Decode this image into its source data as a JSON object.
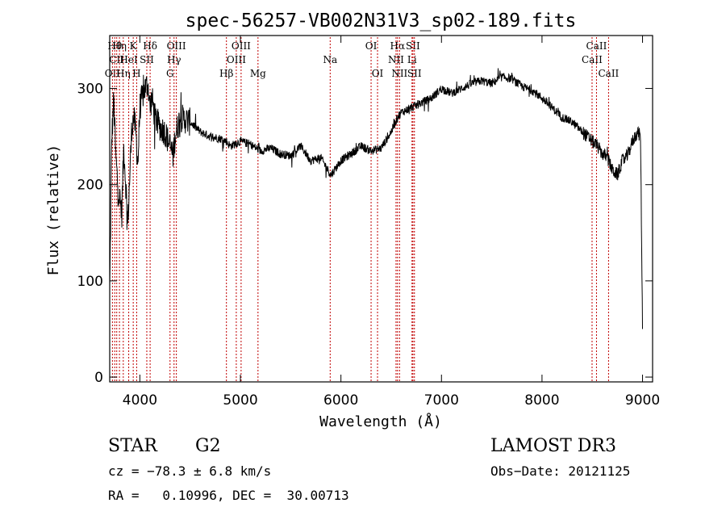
{
  "chart_data": {
    "type": "line",
    "title": "spec-56257-VB002N31V3_sp02-189.fits",
    "xlabel": "Wavelength (Å)",
    "ylabel": "Flux (relative)",
    "xlim": [
      3700,
      9100
    ],
    "ylim": [
      -5,
      355
    ],
    "xticks": [
      4000,
      5000,
      6000,
      7000,
      8000,
      9000
    ],
    "yticks": [
      0,
      100,
      200,
      300
    ],
    "series": [
      {
        "name": "flux",
        "x": [
          3700,
          3720,
          3740,
          3760,
          3780,
          3800,
          3820,
          3840,
          3860,
          3880,
          3900,
          3920,
          3940,
          3960,
          3980,
          4000,
          4020,
          4050,
          4080,
          4100,
          4120,
          4150,
          4200,
          4250,
          4300,
          4330,
          4350,
          4400,
          4500,
          4600,
          4700,
          4800,
          4860,
          4900,
          5000,
          5100,
          5200,
          5300,
          5400,
          5500,
          5600,
          5700,
          5800,
          5900,
          6000,
          6100,
          6200,
          6300,
          6400,
          6500,
          6563,
          6600,
          6700,
          6800,
          6900,
          7000,
          7100,
          7200,
          7300,
          7400,
          7500,
          7600,
          7700,
          7800,
          7900,
          8000,
          8100,
          8200,
          8300,
          8400,
          8500,
          8550,
          8600,
          8650,
          8700,
          8750,
          8800,
          8850,
          8900,
          8950,
          8980,
          9000
        ],
        "y": [
          90,
          245,
          290,
          230,
          200,
          185,
          170,
          240,
          200,
          160,
          210,
          260,
          270,
          255,
          220,
          280,
          290,
          300,
          305,
          280,
          290,
          270,
          260,
          255,
          240,
          230,
          250,
          270,
          265,
          255,
          250,
          248,
          245,
          240,
          245,
          242,
          235,
          238,
          232,
          230,
          240,
          225,
          228,
          210,
          225,
          232,
          240,
          235,
          238,
          255,
          270,
          275,
          280,
          285,
          290,
          300,
          295,
          300,
          305,
          308,
          305,
          312,
          310,
          302,
          298,
          290,
          280,
          270,
          265,
          255,
          245,
          240,
          232,
          228,
          215,
          210,
          225,
          230,
          245,
          255,
          250,
          50
        ]
      }
    ],
    "lines": [
      {
        "w": 3727,
        "label": "OII",
        "row": 2
      },
      {
        "w": 3750,
        "label": "Hθ",
        "row": 0
      },
      {
        "w": 3770,
        "label": "CII",
        "row": 1
      },
      {
        "w": 3797,
        "label": "Hη",
        "row": 0
      },
      {
        "w": 3835,
        "label": "Hη",
        "row": 2
      },
      {
        "w": 3889,
        "label": "HeI",
        "row": 1
      },
      {
        "w": 3934,
        "label": "K",
        "row": 0
      },
      {
        "w": 3968,
        "label": "H",
        "row": 2
      },
      {
        "w": 4069,
        "label": "SII",
        "row": 1
      },
      {
        "w": 4102,
        "label": "Hδ",
        "row": 0
      },
      {
        "w": 4300,
        "label": "G",
        "row": 2
      },
      {
        "w": 4340,
        "label": "Hγ",
        "row": 1
      },
      {
        "w": 4363,
        "label": "OIII",
        "row": 0
      },
      {
        "w": 4861,
        "label": "Hβ",
        "row": 2
      },
      {
        "w": 4959,
        "label": "OIII",
        "row": 1
      },
      {
        "w": 5007,
        "label": "OIII",
        "row": 0
      },
      {
        "w": 5175,
        "label": "Mg",
        "row": 2
      },
      {
        "w": 5893,
        "label": "Na",
        "row": 1
      },
      {
        "w": 6300,
        "label": "OI",
        "row": 0
      },
      {
        "w": 6364,
        "label": "OI",
        "row": 2
      },
      {
        "w": 6548,
        "label": "NII",
        "row": 1
      },
      {
        "w": 6563,
        "label": "Hα",
        "row": 0
      },
      {
        "w": 6583,
        "label": "NII",
        "row": 2
      },
      {
        "w": 6707,
        "label": "Li",
        "row": 1
      },
      {
        "w": 6716,
        "label": "SII",
        "row": 0
      },
      {
        "w": 6731,
        "label": "SII",
        "row": 2
      },
      {
        "w": 8498,
        "label": "CaII",
        "row": 1
      },
      {
        "w": 8542,
        "label": "CaII",
        "row": 0
      },
      {
        "w": 8662,
        "label": "CaII",
        "row": 2
      }
    ]
  },
  "info": {
    "object_class": "STAR",
    "subclass": "G2",
    "survey": "LAMOST DR3",
    "redshift": "cz = −78.3 ± 6.8 km/s",
    "obs_date": "Obs−Date: 20121125",
    "coords": "RA =   0.10996, DEC =  30.00713"
  }
}
